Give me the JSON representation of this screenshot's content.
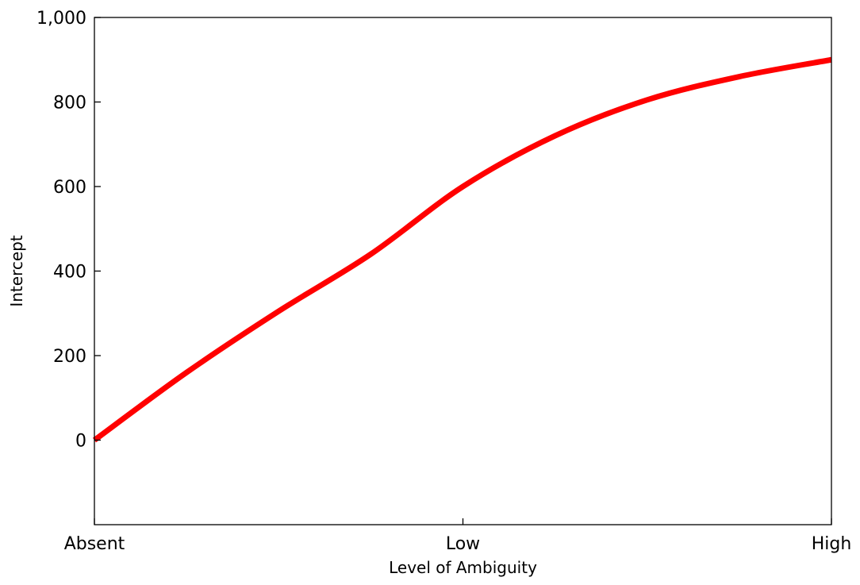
{
  "chart_data": {
    "type": "line",
    "title": "",
    "xlabel": "Level of Ambiguity",
    "ylabel": "Intercept",
    "x_categories": [
      "Absent",
      "Low",
      "High"
    ],
    "x_positions": [
      0,
      1,
      2
    ],
    "xlim": [
      0,
      2
    ],
    "ylim": [
      -200,
      1000
    ],
    "y_ticks": [
      0,
      200,
      400,
      600,
      800,
      1000
    ],
    "y_tick_labels": [
      "0",
      "200",
      "400",
      "600",
      "800",
      "1,000"
    ],
    "grid": false,
    "legend": "none",
    "series": [
      {
        "color": "#ff0000",
        "x": [
          0,
          0.25,
          0.5,
          0.75,
          1.0,
          1.25,
          1.5,
          1.75,
          2.0
        ],
        "y": [
          0,
          160,
          305,
          440,
          600,
          720,
          805,
          860,
          900
        ]
      }
    ]
  }
}
